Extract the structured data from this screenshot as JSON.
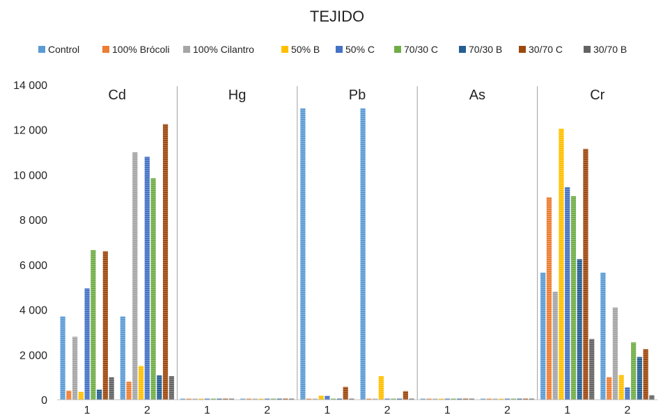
{
  "chart_data": {
    "type": "bar",
    "title": "TEJIDO",
    "xlabel": "",
    "ylabel": "",
    "ylim": [
      0,
      14000
    ],
    "yticks": [
      "0",
      "2 000",
      "4 000",
      "6 000",
      "8 000",
      "10 000",
      "12 000",
      "14 000"
    ],
    "ytick_values": [
      0,
      2000,
      4000,
      6000,
      8000,
      10000,
      12000,
      14000
    ],
    "grid": false,
    "legend_position": "top",
    "panels": [
      {
        "label": "Cd",
        "groups": [
          "1",
          "2"
        ]
      },
      {
        "label": "Hg",
        "groups": [
          "1",
          "2"
        ]
      },
      {
        "label": "Pb",
        "groups": [
          "1",
          "2"
        ]
      },
      {
        "label": "As",
        "groups": [
          "1",
          "2"
        ]
      },
      {
        "label": "Cr",
        "groups": [
          "1",
          "2"
        ]
      }
    ],
    "series": [
      {
        "name": "Control",
        "color": "#5B9BD5",
        "values": [
          [
            3700,
            3700
          ],
          [
            40,
            40
          ],
          [
            12950,
            12950
          ],
          [
            40,
            40
          ],
          [
            5650,
            5650
          ]
        ]
      },
      {
        "name": "100% Brócoli",
        "color": "#ED7D31",
        "values": [
          [
            400,
            800
          ],
          [
            40,
            40
          ],
          [
            20,
            20
          ],
          [
            40,
            40
          ],
          [
            9000,
            1000
          ]
        ]
      },
      {
        "name": "100% Cilantro",
        "color": "#A5A5A5",
        "values": [
          [
            2800,
            11000
          ],
          [
            40,
            40
          ],
          [
            20,
            20
          ],
          [
            40,
            40
          ],
          [
            4800,
            4100
          ]
        ]
      },
      {
        "name": "50% B",
        "color": "#FFC000",
        "values": [
          [
            350,
            1500
          ],
          [
            40,
            40
          ],
          [
            180,
            1050
          ],
          [
            40,
            40
          ],
          [
            12050,
            1100
          ]
        ]
      },
      {
        "name": "50% C",
        "color": "#4472C4",
        "values": [
          [
            4950,
            10800
          ],
          [
            40,
            40
          ],
          [
            170,
            20
          ],
          [
            40,
            40
          ],
          [
            9450,
            550
          ]
        ]
      },
      {
        "name": "70/30 C",
        "color": "#70AD47",
        "values": [
          [
            6650,
            9850
          ],
          [
            40,
            40
          ],
          [
            20,
            40
          ],
          [
            40,
            40
          ],
          [
            9050,
            2550
          ]
        ]
      },
      {
        "name": "70/30 B",
        "color": "#255E91",
        "values": [
          [
            450,
            1080
          ],
          [
            40,
            40
          ],
          [
            40,
            40
          ],
          [
            40,
            40
          ],
          [
            6250,
            1900
          ]
        ]
      },
      {
        "name": "30/70 C",
        "color": "#9E480E",
        "values": [
          [
            6600,
            12250
          ],
          [
            40,
            40
          ],
          [
            570,
            380
          ],
          [
            40,
            40
          ],
          [
            11150,
            2250
          ]
        ]
      },
      {
        "name": "30/70 B",
        "color": "#636363",
        "values": [
          [
            1000,
            1050
          ],
          [
            40,
            40
          ],
          [
            40,
            40
          ],
          [
            40,
            40
          ],
          [
            2700,
            200
          ]
        ]
      }
    ]
  }
}
